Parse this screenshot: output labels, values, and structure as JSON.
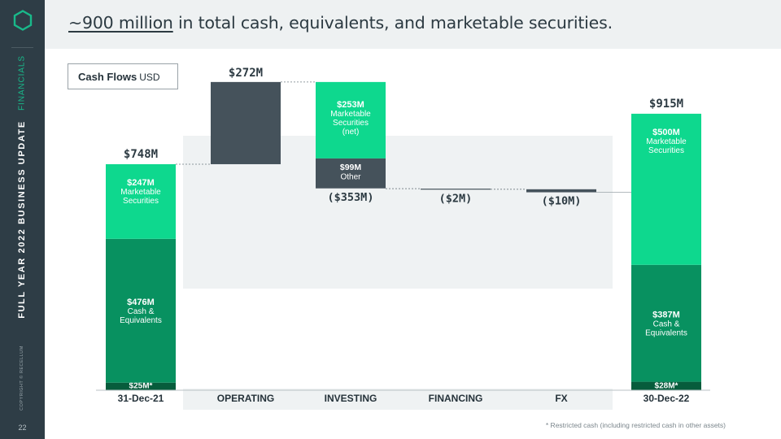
{
  "sidebar": {
    "section": "FINANCIALS",
    "deck": "FULL YEAR 2022 BUSINESS UPDATE",
    "copyright": "COPYRIGHT © RECELLUM",
    "page_number": "22"
  },
  "title": {
    "highlight": "~900 million",
    "rest": " in total cash, equivalents, and marketable securities."
  },
  "legend_box": {
    "label": "Cash Flows",
    "unit": "USD"
  },
  "footnote": "* Restricted cash (including restricted cash in other assets)",
  "colors": {
    "marketable": "#0ed88e",
    "cash": "#089160",
    "restricted": "#075c3c",
    "dark": "#45525b",
    "flow_highlight": "#eff2f3"
  },
  "chart_data": {
    "type": "bar",
    "subtype": "waterfall",
    "unit": "USD millions",
    "categories": [
      "31-Dec-21",
      "OPERATING",
      "INVESTING",
      "FINANCING",
      "FX",
      "30-Dec-22"
    ],
    "opening": {
      "category": "31-Dec-21",
      "total": 748,
      "total_label": "$748M",
      "segments": [
        {
          "value": 25,
          "label": "$25M*",
          "name": ""
        },
        {
          "value": 476,
          "label": "$476M",
          "name": "Cash & Equivalents"
        },
        {
          "value": 247,
          "label": "$247M",
          "name": "Marketable Securities"
        }
      ]
    },
    "flows": [
      {
        "category": "OPERATING",
        "value": 272,
        "label": "$272M",
        "segments": [
          {
            "value": 272,
            "label": "",
            "name": ""
          }
        ]
      },
      {
        "category": "INVESTING",
        "value": -353,
        "label": "($353M)",
        "segments": [
          {
            "value": -253,
            "label": "$253M",
            "name": "Marketable Securities (net)"
          },
          {
            "value": -99,
            "label": "$99M",
            "name": "Other"
          }
        ]
      },
      {
        "category": "FINANCING",
        "value": -2,
        "label": "($2M)",
        "segments": []
      },
      {
        "category": "FX",
        "value": -10,
        "label": "($10M)",
        "segments": []
      }
    ],
    "closing": {
      "category": "30-Dec-22",
      "total": 915,
      "total_label": "$915M",
      "segments": [
        {
          "value": 28,
          "label": "$28M*",
          "name": ""
        },
        {
          "value": 387,
          "label": "$387M",
          "name": "Cash & Equivalents"
        },
        {
          "value": 500,
          "label": "$500M",
          "name": "Marketable Securities"
        }
      ]
    }
  }
}
